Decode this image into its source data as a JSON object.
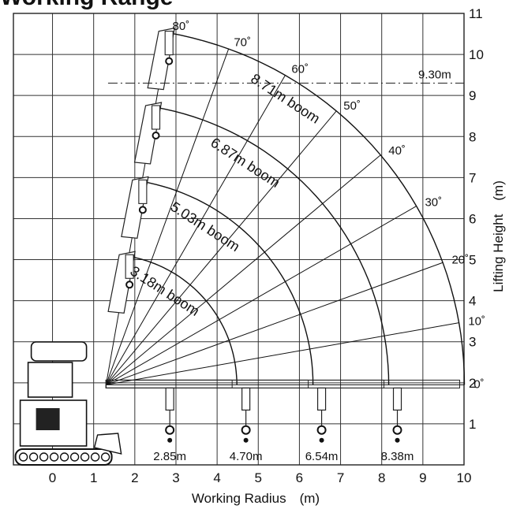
{
  "title": {
    "text": "Working Range"
  },
  "chart_data": {
    "type": "working-range-diagram",
    "xlabel": "Working Radius　(m)",
    "ylabel": "Lifting Height　(m)",
    "x_ticks": [
      "0",
      "1",
      "2",
      "3",
      "4",
      "5",
      "6",
      "7",
      "8",
      "9",
      "10"
    ],
    "y_ticks": [
      "1",
      "2",
      "3",
      "4",
      "5",
      "6",
      "7",
      "8",
      "9",
      "10",
      "11"
    ],
    "xlim": [
      -0.95,
      10
    ],
    "ylim": [
      0,
      11
    ],
    "grid": true,
    "pivot": [
      1.3,
      1.95
    ],
    "booms": [
      {
        "label": "3.18m boom",
        "length": 3.18,
        "radius_label": "2.85m",
        "radius": 2.85
      },
      {
        "label": "5.03m boom",
        "length": 5.03,
        "radius_label": "4.70m",
        "radius": 4.7
      },
      {
        "label": "6.87m boom",
        "length": 6.87,
        "radius_label": "6.54m",
        "radius": 6.54
      },
      {
        "label": "8.71m boom",
        "length": 8.71,
        "radius_label": "8.38m",
        "radius": 8.38
      }
    ],
    "angles": [
      {
        "label": "0˚",
        "deg": 0
      },
      {
        "label": "10˚",
        "deg": 10
      },
      {
        "label": "20˚",
        "deg": 20
      },
      {
        "label": "30˚",
        "deg": 30
      },
      {
        "label": "40˚",
        "deg": 40
      },
      {
        "label": "50˚",
        "deg": 50
      },
      {
        "label": "60˚",
        "deg": 60
      },
      {
        "label": "70˚",
        "deg": 70
      },
      {
        "label": "80˚",
        "deg": 80
      }
    ],
    "max_height": {
      "label": "9.30m",
      "value": 9.3
    }
  }
}
